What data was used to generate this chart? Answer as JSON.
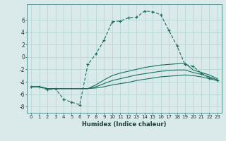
{
  "xlabel": "Humidex (Indice chaleur)",
  "ylabel": "",
  "background_color": "#daeaea",
  "grid_color": "#b8d8d8",
  "line_color": "#1a6e60",
  "xlim": [
    -0.5,
    23.5
  ],
  "ylim": [
    -9,
    8.5
  ],
  "xticks": [
    0,
    1,
    2,
    3,
    4,
    5,
    6,
    7,
    8,
    9,
    10,
    11,
    12,
    13,
    14,
    15,
    16,
    17,
    18,
    19,
    20,
    21,
    22,
    23
  ],
  "yticks": [
    -8,
    -6,
    -4,
    -2,
    0,
    2,
    4,
    6
  ],
  "line1_x": [
    0,
    1,
    2,
    3,
    4,
    5,
    6,
    7,
    8,
    9,
    10,
    11,
    12,
    13,
    14,
    15,
    16,
    17,
    18,
    19,
    20,
    21,
    22,
    23
  ],
  "line1_y": [
    -4.8,
    -4.8,
    -5.3,
    -5.1,
    -6.8,
    -7.3,
    -7.7,
    -1.2,
    0.5,
    2.7,
    5.7,
    5.8,
    6.3,
    6.4,
    7.4,
    7.3,
    6.8,
    4.3,
    1.8,
    -1.2,
    -1.5,
    -2.6,
    -3.4,
    -3.8
  ],
  "line2_x": [
    0,
    1,
    2,
    3,
    4,
    5,
    6,
    7,
    8,
    9,
    10,
    11,
    12,
    13,
    14,
    15,
    16,
    17,
    18,
    19,
    20,
    21,
    22,
    23
  ],
  "line2_y": [
    -4.8,
    -4.8,
    -5.1,
    -5.1,
    -5.1,
    -5.1,
    -5.1,
    -5.1,
    -5.0,
    -4.8,
    -4.5,
    -4.3,
    -4.1,
    -3.8,
    -3.6,
    -3.4,
    -3.2,
    -3.1,
    -3.0,
    -2.9,
    -3.0,
    -3.2,
    -3.5,
    -3.8
  ],
  "line3_x": [
    0,
    1,
    2,
    3,
    4,
    5,
    6,
    7,
    8,
    9,
    10,
    11,
    12,
    13,
    14,
    15,
    16,
    17,
    18,
    19,
    20,
    21,
    22,
    23
  ],
  "line3_y": [
    -4.8,
    -4.8,
    -5.1,
    -5.1,
    -5.1,
    -5.1,
    -5.1,
    -5.1,
    -4.8,
    -4.3,
    -3.8,
    -3.5,
    -3.2,
    -2.9,
    -2.7,
    -2.5,
    -2.3,
    -2.2,
    -2.1,
    -2.1,
    -2.5,
    -2.8,
    -3.2,
    -3.7
  ],
  "line4_x": [
    0,
    1,
    2,
    3,
    4,
    5,
    6,
    7,
    8,
    9,
    10,
    11,
    12,
    13,
    14,
    15,
    16,
    17,
    18,
    19,
    20,
    21,
    22,
    23
  ],
  "line4_y": [
    -4.8,
    -4.8,
    -5.1,
    -5.1,
    -5.1,
    -5.1,
    -5.1,
    -5.1,
    -4.5,
    -3.7,
    -3.0,
    -2.6,
    -2.3,
    -2.0,
    -1.7,
    -1.5,
    -1.3,
    -1.2,
    -1.1,
    -1.0,
    -2.1,
    -2.5,
    -2.9,
    -3.5
  ]
}
